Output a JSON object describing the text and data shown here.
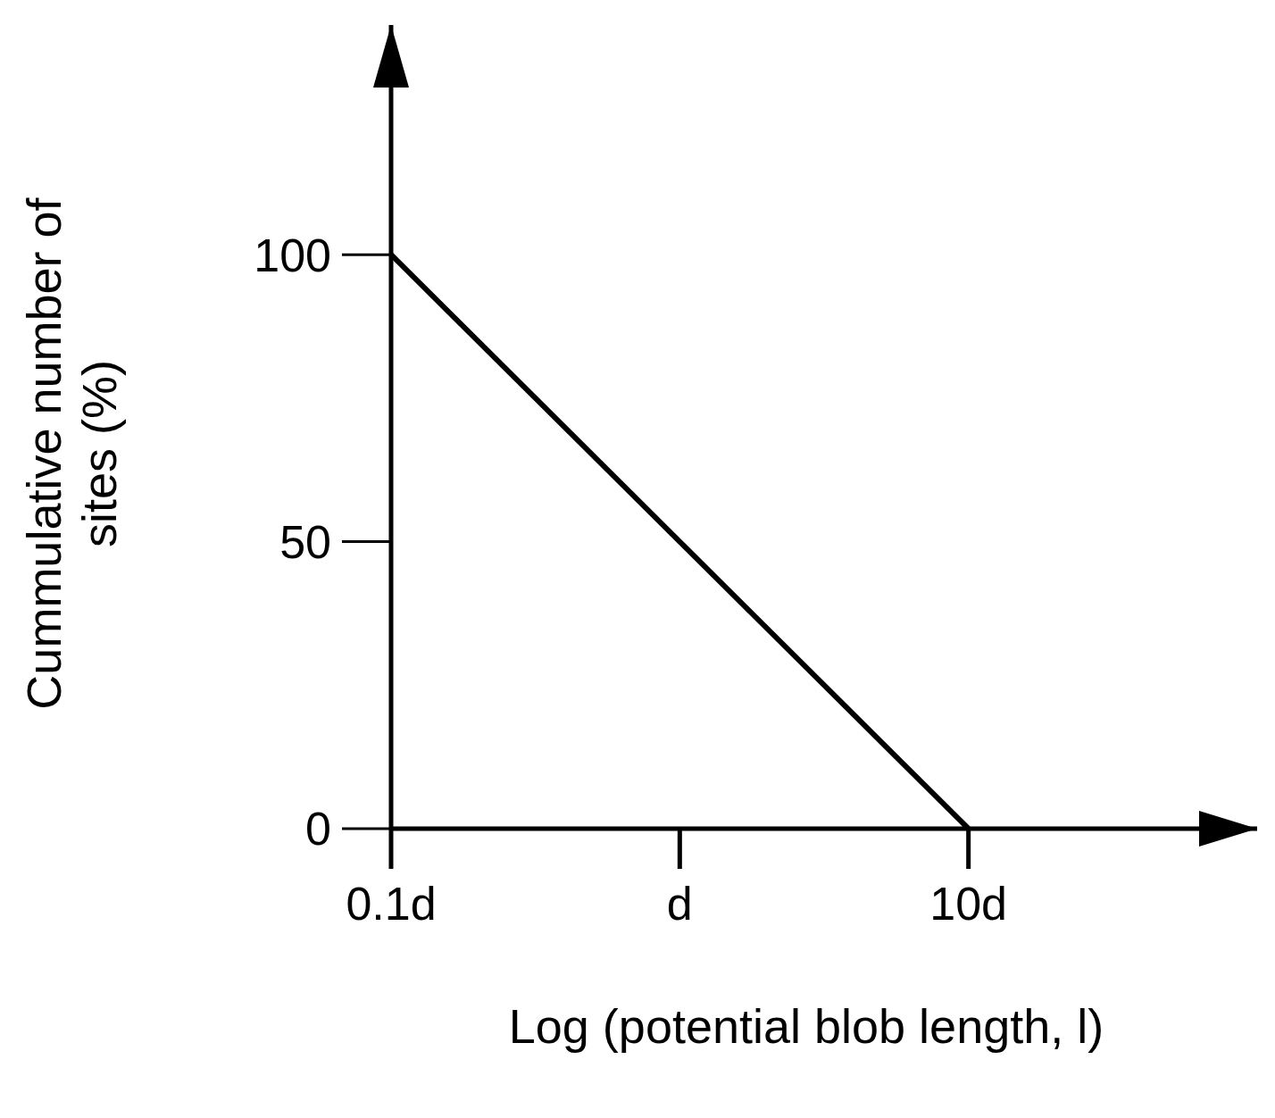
{
  "chart_data": {
    "type": "line",
    "xlabel": "Log (potential blob length, l)",
    "ylabel": "Cummulative number of sites (%)",
    "x": [
      0.1,
      1,
      10
    ],
    "series": [
      {
        "color": "#000000",
        "values": [
          100,
          50,
          0
        ]
      }
    ],
    "log": "x",
    "xlim": [
      0.1,
      100
    ],
    "xticks": [
      {
        "value": 0.1,
        "label": "0.1d"
      },
      {
        "value": 1,
        "label": "d"
      },
      {
        "value": 10,
        "label": "10d"
      }
    ],
    "ylim": [
      0,
      140
    ],
    "yticks": [
      0,
      50,
      100
    ],
    "grid": false,
    "legend": false,
    "marker": "none",
    "line_style": "solid"
  }
}
